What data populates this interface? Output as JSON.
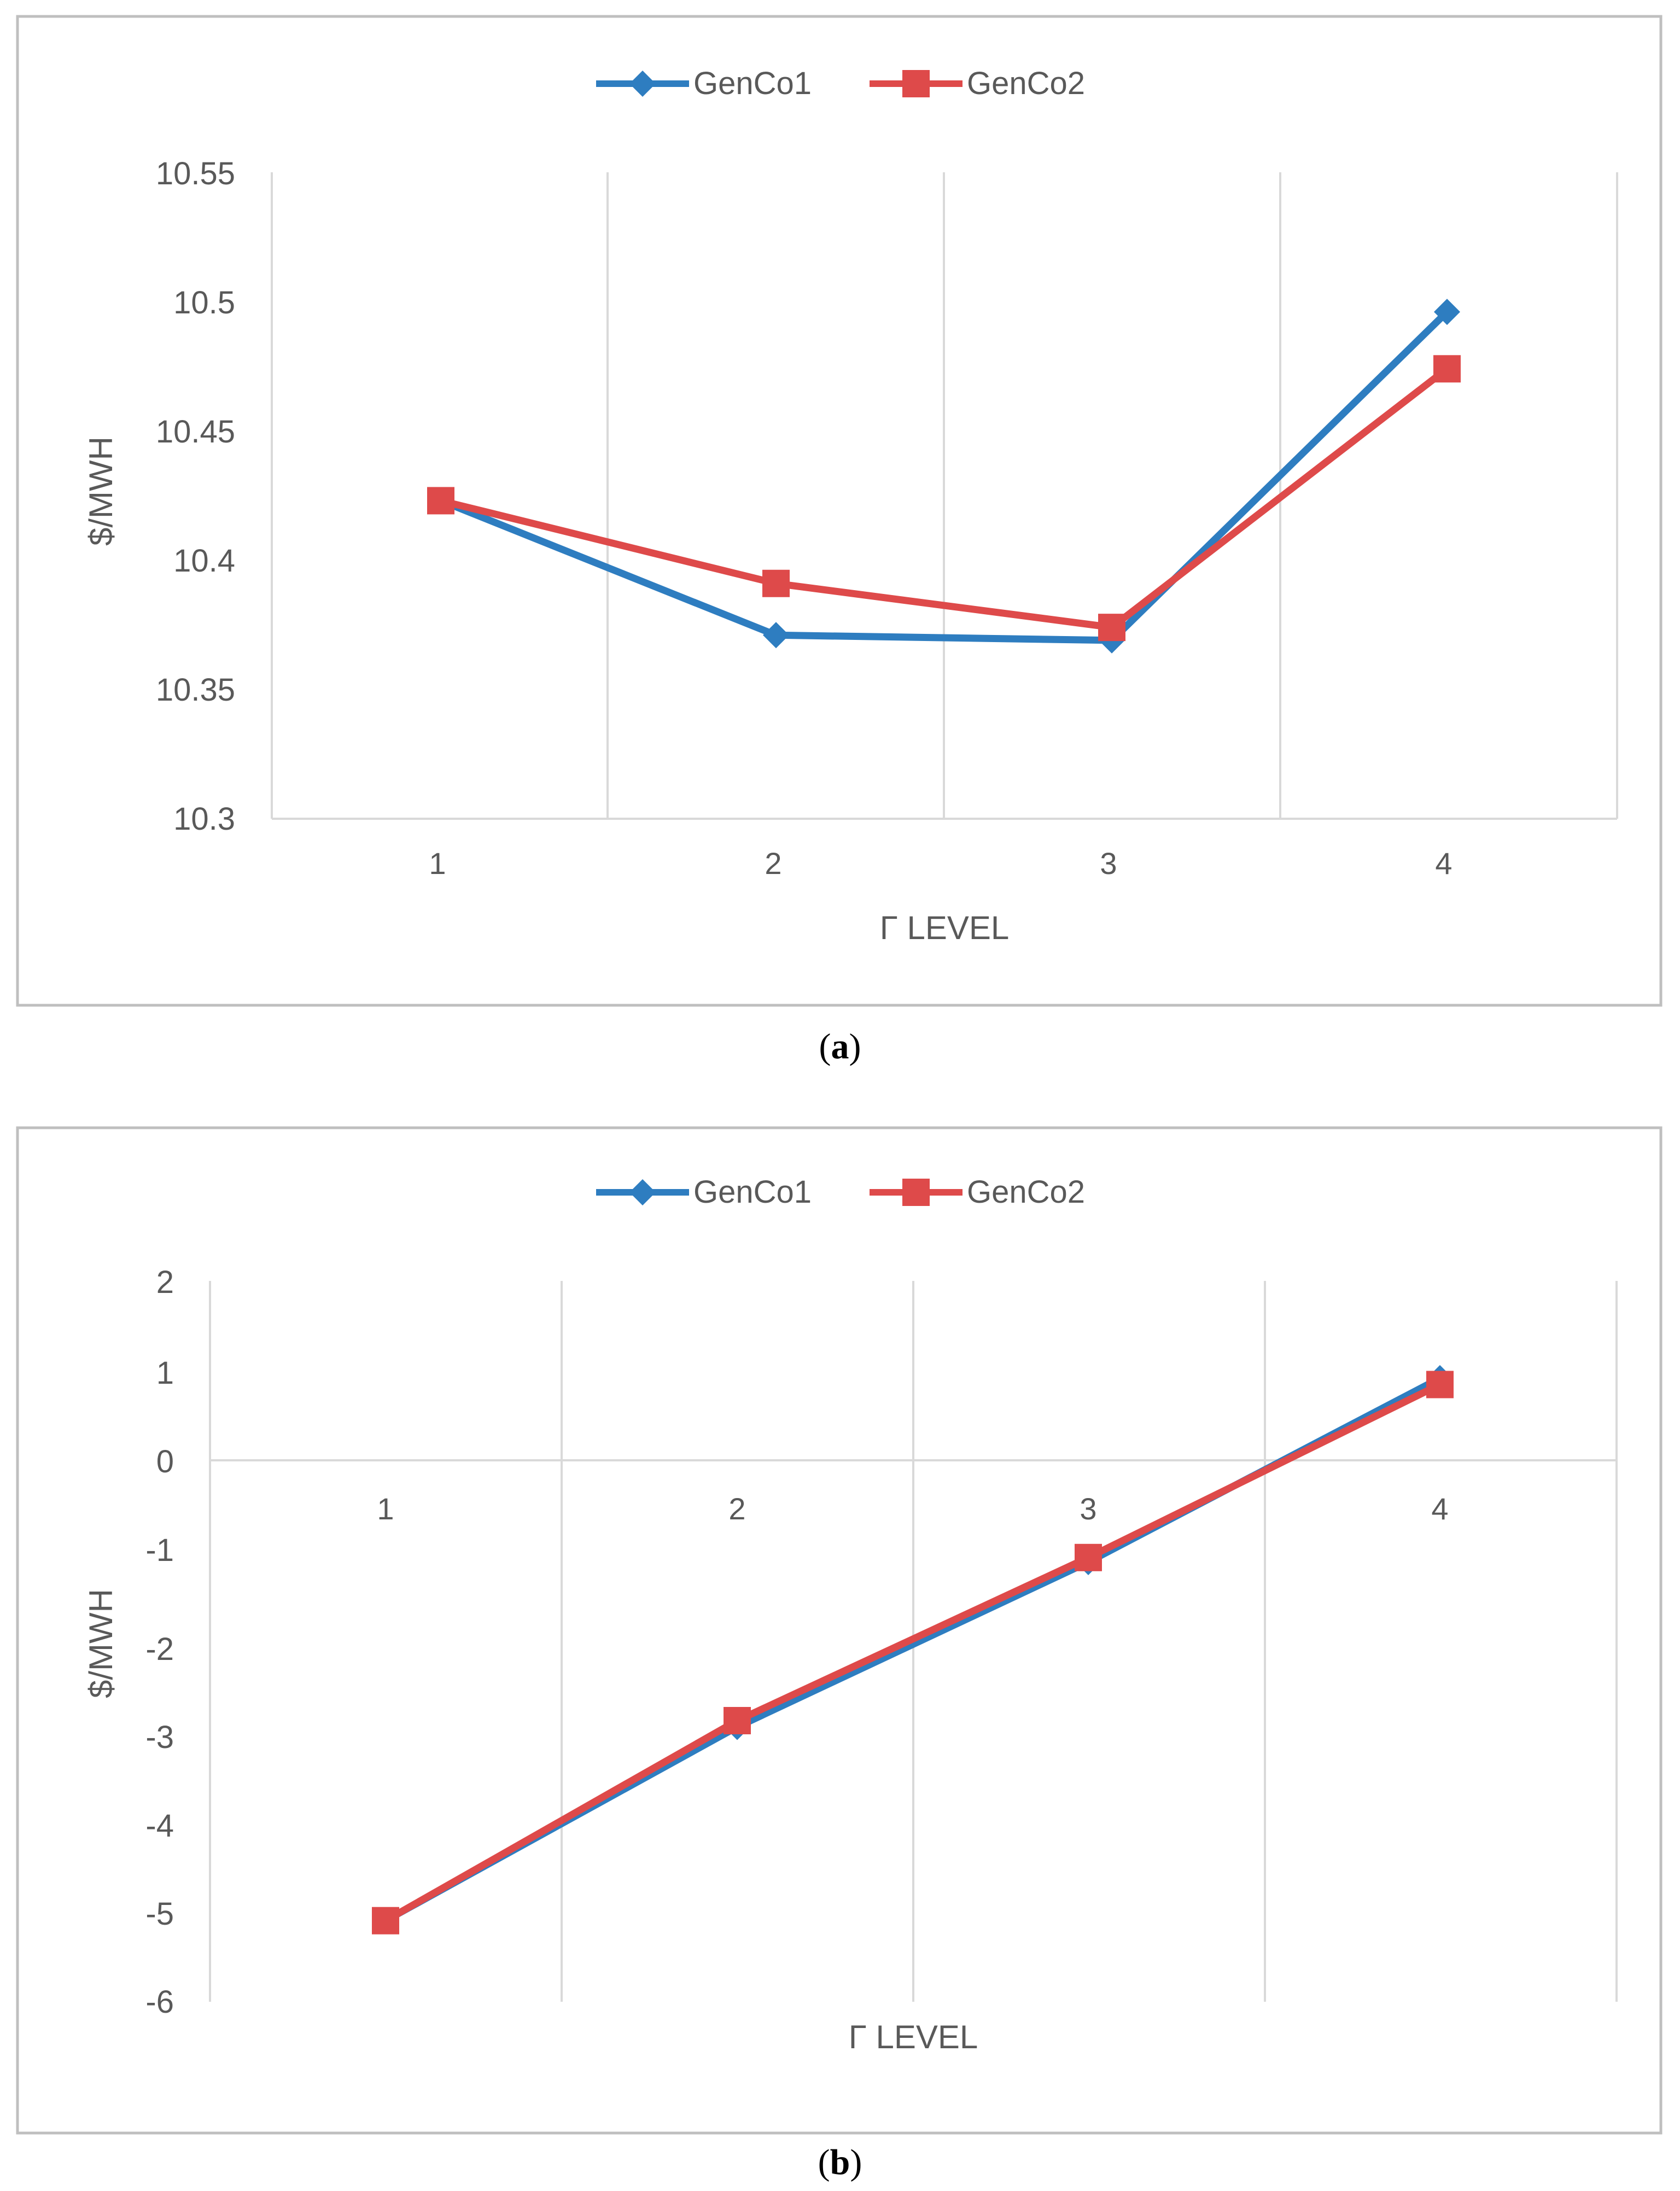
{
  "figure": {
    "captions": [
      "(a)",
      "(b)"
    ],
    "caption_letters": [
      "a",
      "b"
    ],
    "colors": {
      "genco1": "#2E7DC0",
      "genco2": "#DE4A4A",
      "grid": "#D9D9D9",
      "frame": "#BFBFBF",
      "text": "#595959"
    }
  },
  "chart_data": [
    {
      "type": "line",
      "title": "",
      "categories": [
        "1",
        "2",
        "3",
        "4"
      ],
      "xlabel": "Γ LEVEL",
      "ylabel": "$/MWH",
      "ylim": [
        10.3,
        10.55
      ],
      "yticks": [
        10.3,
        10.35,
        10.4,
        10.45,
        10.5,
        10.55
      ],
      "ytick_labels": [
        "10.3",
        "10.35",
        "10.4",
        "10.45",
        "10.5",
        "10.55"
      ],
      "legend_position": "top-center",
      "grid": "vertical",
      "series": [
        {
          "name": "GenCo1",
          "marker": "diamond",
          "values": [
            10.423,
            10.371,
            10.369,
            10.496
          ]
        },
        {
          "name": "GenCo2",
          "marker": "square",
          "values": [
            10.423,
            10.391,
            10.374,
            10.474
          ]
        }
      ]
    },
    {
      "type": "line",
      "title": "",
      "categories": [
        "1",
        "2",
        "3",
        "4"
      ],
      "xlabel": "Γ LEVEL",
      "ylabel": "$/MWH",
      "ylim": [
        -6,
        2
      ],
      "yticks": [
        -6,
        -5,
        -4,
        -3,
        -2,
        -1,
        0,
        1,
        2
      ],
      "ytick_labels": [
        "-6",
        "-5",
        "-4",
        "-3",
        "-2",
        "-1",
        "0",
        "1",
        "2"
      ],
      "legend_position": "top-center",
      "grid": "vertical",
      "series": [
        {
          "name": "GenCo1",
          "marker": "diamond",
          "values": [
            -5.1,
            -2.95,
            -1.12,
            0.92
          ]
        },
        {
          "name": "GenCo2",
          "marker": "square",
          "values": [
            -5.1,
            -2.88,
            -1.07,
            0.85
          ]
        }
      ]
    }
  ]
}
